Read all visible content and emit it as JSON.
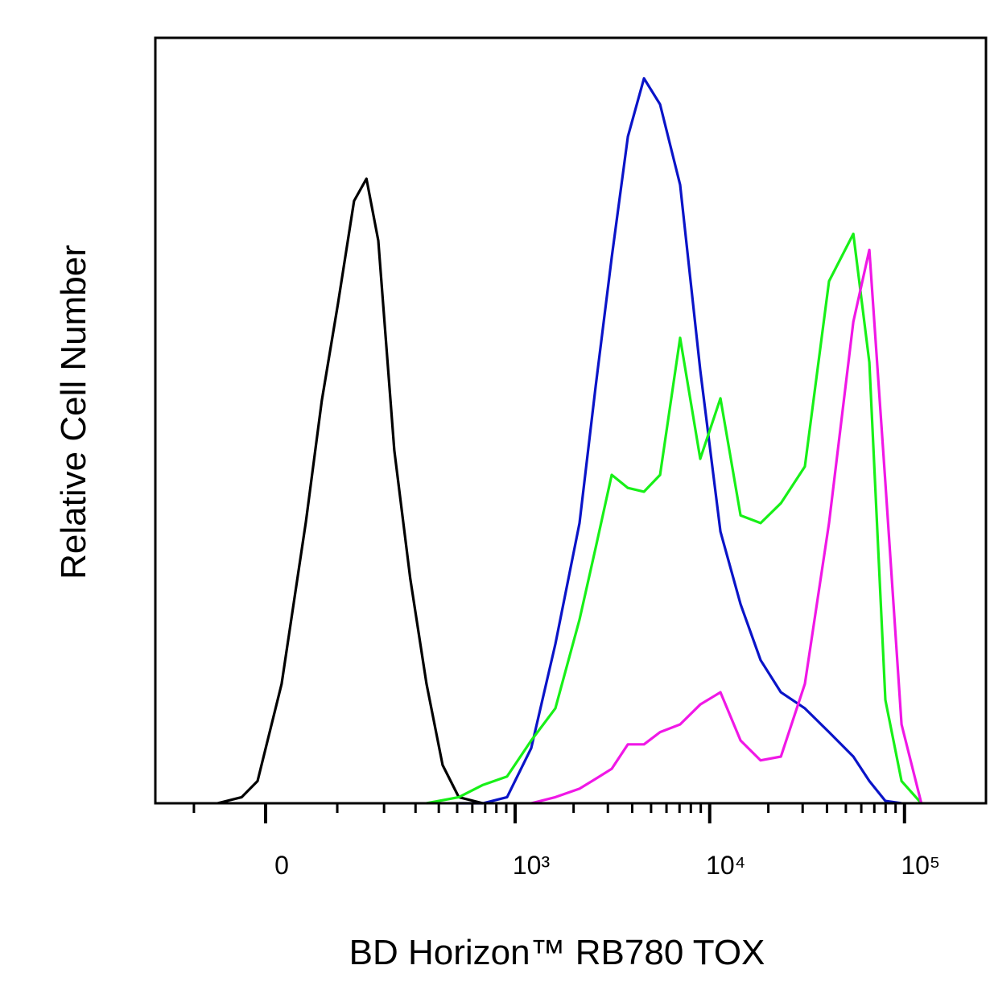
{
  "chart_data": {
    "type": "line",
    "x_label": "BD Horizon™ RB780 TOX",
    "y_label": "Relative Cell Number",
    "xscale": {
      "type": "asinh",
      "cofactor": 105
    },
    "xlim": [
      -179,
      262000
    ],
    "ylim": [
      0,
      100
    ],
    "xticks": [
      {
        "value": 0,
        "label": "0"
      },
      {
        "value": 1000,
        "label": "10³"
      },
      {
        "value": 10000,
        "label": "10⁴"
      },
      {
        "value": 100000,
        "label": "10⁵"
      }
    ],
    "xminorticks": [
      -100,
      100,
      200,
      300,
      400,
      500,
      600,
      700,
      800,
      900,
      2000,
      3000,
      4000,
      5000,
      6000,
      7000,
      8000,
      9000,
      20000,
      30000,
      40000,
      50000,
      60000,
      70000,
      80000,
      90000
    ],
    "series": [
      {
        "color": "#000000",
        "x": [
          -63,
          -30,
          -10,
          20,
          52,
          75,
          101,
          131,
          157,
          185,
          229,
          281,
          344,
          419,
          510,
          681
        ],
        "values": [
          0,
          0.8,
          2.9,
          15.6,
          36.8,
          52.6,
          65.2,
          78.7,
          81.6,
          73.5,
          46.1,
          29.3,
          15.6,
          5.0,
          0.8,
          0
        ]
      },
      {
        "color": "#0a14c8",
        "x": [
          510,
          681,
          909,
          1211,
          1612,
          2146,
          2597,
          3140,
          3800,
          4600,
          5560,
          7050,
          8940,
          11350,
          14400,
          18260,
          23200,
          30800,
          41000,
          54600,
          66000,
          79800,
          96600
        ],
        "values": [
          0,
          0,
          0.8,
          7.2,
          20.8,
          36.6,
          54.5,
          71.3,
          87.1,
          94.7,
          91.3,
          80.8,
          56.6,
          35.5,
          26.0,
          18.7,
          14.5,
          12.4,
          9.3,
          6.1,
          2.9,
          0.3,
          0
        ]
      },
      {
        "color": "#18f018",
        "x": [
          344,
          510,
          681,
          909,
          1211,
          1612,
          2146,
          2597,
          3140,
          3800,
          4600,
          5560,
          7050,
          8940,
          11350,
          14400,
          18260,
          23200,
          30800,
          41000,
          54600,
          66000,
          79800,
          96600,
          122000
        ],
        "values": [
          0,
          0.8,
          2.4,
          3.5,
          8.2,
          12.4,
          24.0,
          33.4,
          42.9,
          41.2,
          40.7,
          42.9,
          60.8,
          45.0,
          52.9,
          37.6,
          36.6,
          39.2,
          44.0,
          68.2,
          74.4,
          57.6,
          13.5,
          2.9,
          0
        ]
      },
      {
        "color": "#f018e6",
        "x": [
          1211,
          1612,
          2146,
          2597,
          3140,
          3800,
          4600,
          5560,
          7050,
          8940,
          11350,
          14400,
          18260,
          23200,
          30800,
          41000,
          54600,
          66000,
          79800,
          96600,
          122000
        ],
        "values": [
          0,
          0.8,
          1.9,
          3.2,
          4.5,
          7.7,
          7.7,
          9.3,
          10.3,
          12.9,
          14.5,
          8.2,
          5.6,
          6.1,
          15.6,
          36.6,
          62.9,
          72.3,
          41.9,
          10.3,
          0
        ]
      }
    ]
  }
}
